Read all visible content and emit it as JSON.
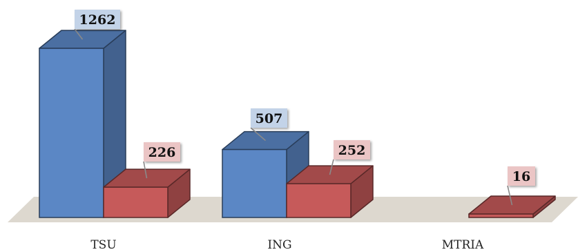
{
  "chart_data": {
    "type": "bar",
    "categories": [
      "TSU",
      "ING",
      "MTRIA"
    ],
    "series": [
      {
        "values": [
          1262,
          507,
          0
        ],
        "color": "#5B87C5",
        "label_bg": "#C3D3E8"
      },
      {
        "values": [
          226,
          252,
          16
        ],
        "color": "#C65A5A",
        "label_bg": "#EBC5C5"
      }
    ],
    "data_labels": [
      [
        "1262",
        "507",
        ""
      ],
      [
        "226",
        "252",
        "16"
      ]
    ],
    "title": "",
    "xlabel": "",
    "ylabel": "",
    "ylim": [
      0,
      1262
    ],
    "grid": false,
    "legend": "none",
    "style": "3d-column",
    "floor_color": "#DDD8CF"
  }
}
